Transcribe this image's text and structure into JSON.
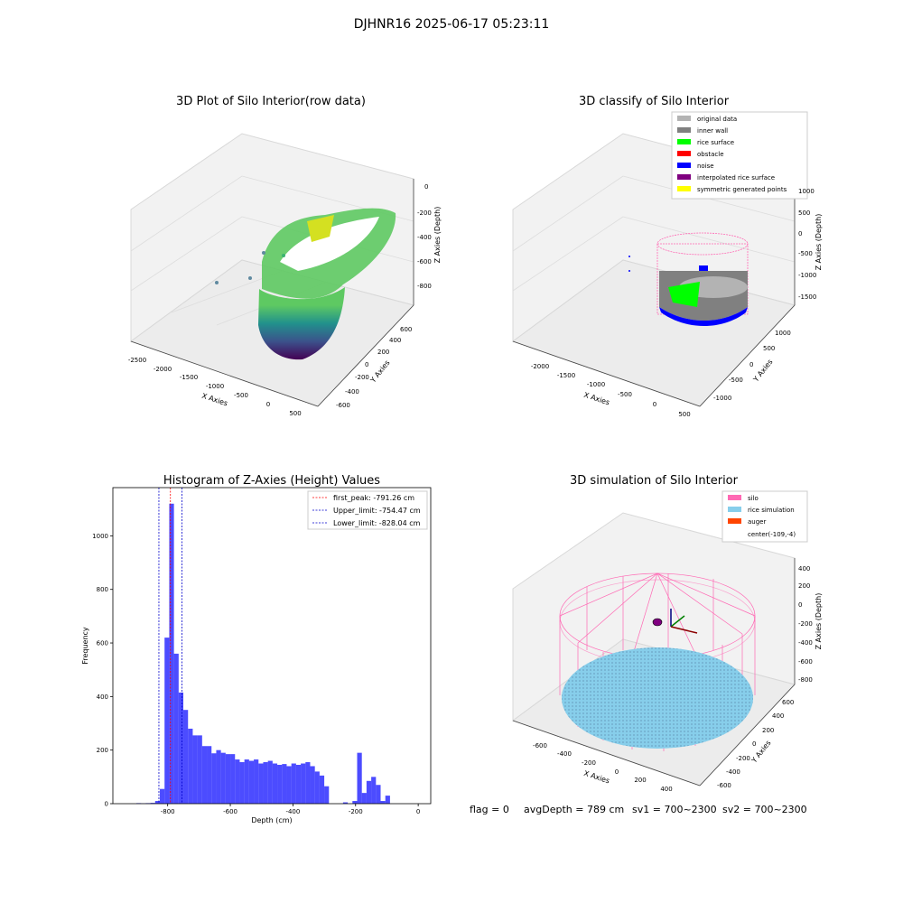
{
  "suptitle": "DJHNR16 2025-06-17 05:23:11",
  "footer": {
    "flag": "flag = 0",
    "avg_depth": "avgDepth = 789 cm",
    "sv1": "sv1 = 700~2300",
    "sv2": "sv2 = 700~2300"
  },
  "chart_data": [
    {
      "type": "scatter3d",
      "title": "3D Plot of Silo Interior(row data)",
      "xlabel": "X Axies",
      "ylabel": "Y Axies",
      "zlabel": "Z Axies (Depth)",
      "x_ticks": [
        -2500,
        -2000,
        -1500,
        -1000,
        -500,
        0,
        500
      ],
      "y_ticks": [
        -600,
        -400,
        -200,
        0,
        200,
        400,
        600
      ],
      "z_ticks": [
        -800,
        -600,
        -400,
        -200,
        0
      ],
      "colormap": "viridis"
    },
    {
      "type": "scatter3d",
      "title": "3D classify of Silo Interior",
      "xlabel": "X Axies",
      "ylabel": "Y Axies",
      "zlabel": "Z Axies (Depth)",
      "x_ticks": [
        -2000,
        -1500,
        -1000,
        -500,
        0,
        500
      ],
      "y_ticks": [
        -1000,
        -500,
        0,
        500,
        1000
      ],
      "z_ticks": [
        -1500,
        -1000,
        -500,
        0,
        500,
        1000
      ],
      "legend_position": "top-right",
      "legend": [
        {
          "label": "original data",
          "color": "#b3b3b3"
        },
        {
          "label": "inner wall",
          "color": "#808080"
        },
        {
          "label": "rice surface",
          "color": "#00ff00"
        },
        {
          "label": "obstacle",
          "color": "#ff0000"
        },
        {
          "label": "noise",
          "color": "#0000ff"
        },
        {
          "label": "interpolated rice surface",
          "color": "#800080"
        },
        {
          "label": "symmetric generated points",
          "color": "#ffff00"
        }
      ]
    },
    {
      "type": "bar",
      "title": "Histogram of Z-Axies (Height) Values",
      "xlabel": "Depth (cm)",
      "ylabel": "Frequency",
      "xlim": [
        -975,
        40
      ],
      "ylim": [
        0,
        1180
      ],
      "x_ticks": [
        -800,
        -600,
        -400,
        -200,
        0
      ],
      "y_ticks": [
        0,
        200,
        400,
        600,
        800,
        1000
      ],
      "bin_width": 15,
      "bin_starts": [
        -900,
        -885,
        -870,
        -855,
        -840,
        -825,
        -810,
        -795,
        -780,
        -765,
        -750,
        -735,
        -720,
        -705,
        -690,
        -675,
        -660,
        -645,
        -630,
        -615,
        -600,
        -585,
        -570,
        -555,
        -540,
        -525,
        -510,
        -495,
        -480,
        -465,
        -450,
        -435,
        -420,
        -405,
        -390,
        -375,
        -360,
        -345,
        -330,
        -315,
        -300,
        -285,
        -270,
        -255,
        -240,
        -225,
        -210,
        -195,
        -180,
        -165,
        -150,
        -135,
        -120,
        -105,
        -90,
        -75,
        -60,
        -45,
        -30,
        -15,
        0
      ],
      "values": [
        2,
        1,
        2,
        3,
        10,
        55,
        620,
        1120,
        560,
        415,
        350,
        280,
        255,
        255,
        215,
        215,
        188,
        200,
        190,
        185,
        185,
        165,
        155,
        165,
        160,
        165,
        150,
        155,
        160,
        150,
        145,
        148,
        140,
        150,
        145,
        150,
        155,
        140,
        120,
        105,
        65,
        0,
        0,
        0,
        5,
        0,
        10,
        190,
        40,
        85,
        100,
        70,
        10,
        30,
        0,
        0,
        0,
        0,
        0,
        0,
        0
      ],
      "bar_color": "#0000ff",
      "vlines": [
        {
          "x": -791.26,
          "color": "#ff0000",
          "label": "first_peak: -791.26 cm"
        },
        {
          "x": -754.47,
          "color": "#0000cc",
          "label": "Upper_limit: -754.47 cm"
        },
        {
          "x": -828.04,
          "color": "#0000cc",
          "label": "Lower_limit: -828.04 cm"
        }
      ],
      "legend_position": "top-right"
    },
    {
      "type": "scatter3d",
      "title": "3D simulation of Silo Interior",
      "xlabel": "X Axies",
      "ylabel": "Y Axies",
      "zlabel": "Z Axies (Depth)",
      "x_ticks": [
        -600,
        -400,
        -200,
        0,
        200,
        400
      ],
      "y_ticks": [
        -600,
        -400,
        -200,
        0,
        200,
        400,
        600
      ],
      "z_ticks": [
        -800,
        -600,
        -400,
        -200,
        0,
        200,
        400
      ],
      "legend_position": "top-right",
      "legend": [
        {
          "label": "silo",
          "color": "#ff69b4"
        },
        {
          "label": "rice simulation",
          "color": "#87ceeb"
        },
        {
          "label": "auger",
          "color": "#ff4500"
        },
        {
          "label": "center(-109,-4)",
          "color": ""
        }
      ]
    }
  ]
}
